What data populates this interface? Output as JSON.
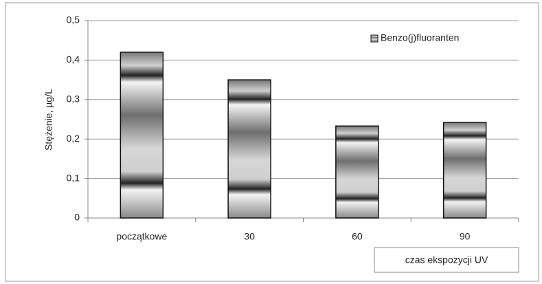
{
  "chart_data": {
    "type": "bar",
    "categories": [
      "początkowe",
      "30",
      "60",
      "90"
    ],
    "series": [
      {
        "name": "Benzo(j)fluoranten",
        "color": "#808080",
        "values": [
          0.42,
          0.35,
          0.233,
          0.242
        ]
      }
    ],
    "y_label": "Stężenie, µg/L",
    "x_label": "czas ekspozycji  UV",
    "ylim": [
      0,
      0.5
    ],
    "yticks": [
      0,
      {
        "value": 0.1,
        "label": "0,1"
      },
      {
        "value": 0.2,
        "label": "0,2"
      },
      {
        "value": 0.3,
        "label": "0,3"
      },
      {
        "value": 0.4,
        "label": "0,4"
      },
      {
        "value": 0.5,
        "label": "0,5"
      }
    ],
    "grid": true,
    "legend": "top-right"
  }
}
